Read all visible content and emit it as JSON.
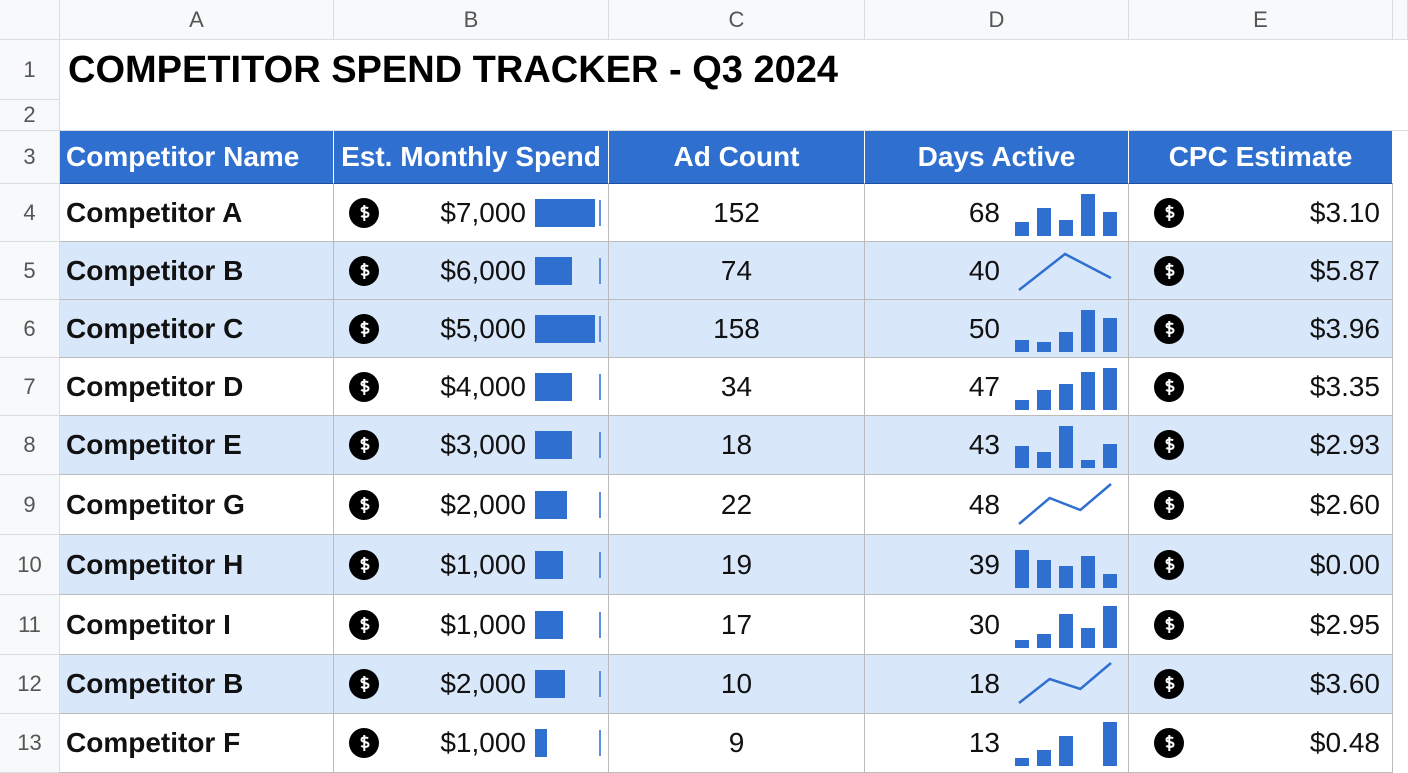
{
  "columns": [
    "A",
    "B",
    "C",
    "D",
    "E"
  ],
  "row_numbers": [
    1,
    2,
    3,
    4,
    5,
    6,
    7,
    8,
    9,
    10,
    11,
    12,
    13
  ],
  "title": "COMPETITOR SPEND TRACKER - Q3 2024",
  "headers": [
    "Competitor Name",
    "Est. Monthly Spend",
    "Ad Count",
    "Days Active",
    "CPC Estimate"
  ],
  "rows": [
    {
      "name": "Competitor A",
      "spend": "$7,000",
      "spend_bar": 100,
      "ad_count": 152,
      "days_active": 68,
      "trend": {
        "kind": "bar",
        "values": [
          14,
          28,
          16,
          42,
          24
        ]
      },
      "cpc": "$3.10",
      "shaded": false
    },
    {
      "name": "Competitor B",
      "spend": "$6,000",
      "spend_bar": 62,
      "ad_count": 74,
      "days_active": 40,
      "trend": {
        "kind": "line",
        "values": [
          4,
          40,
          16
        ]
      },
      "cpc": "$5.87",
      "shaded": true
    },
    {
      "name": "Competitor C",
      "spend": "$5,000",
      "spend_bar": 100,
      "ad_count": 158,
      "days_active": 50,
      "trend": {
        "kind": "bar",
        "values": [
          12,
          10,
          20,
          42,
          34
        ]
      },
      "cpc": "$3.96",
      "shaded": true
    },
    {
      "name": "Competitor D",
      "spend": "$4,000",
      "spend_bar": 62,
      "ad_count": 34,
      "days_active": 47,
      "trend": {
        "kind": "bar",
        "values": [
          10,
          20,
          26,
          38,
          42
        ]
      },
      "cpc": "$3.35",
      "shaded": false
    },
    {
      "name": "Competitor E",
      "spend": "$3,000",
      "spend_bar": 62,
      "ad_count": 18,
      "days_active": 43,
      "trend": {
        "kind": "bar",
        "values": [
          22,
          16,
          42,
          8,
          24
        ]
      },
      "cpc": "$2.93",
      "shaded": true
    },
    {
      "name": "Competitor G",
      "spend": "$2,000",
      "spend_bar": 53,
      "ad_count": 22,
      "days_active": 48,
      "trend": {
        "kind": "line",
        "values": [
          4,
          30,
          18,
          44
        ]
      },
      "cpc": "$2.60",
      "shaded": false
    },
    {
      "name": "Competitor H",
      "spend": "$1,000",
      "spend_bar": 47,
      "ad_count": 19,
      "days_active": 39,
      "trend": {
        "kind": "bar",
        "values": [
          38,
          28,
          22,
          32,
          14
        ]
      },
      "cpc": "$0.00",
      "shaded": true
    },
    {
      "name": "Competitor I",
      "spend": "$1,000",
      "spend_bar": 47,
      "ad_count": 17,
      "days_active": 30,
      "trend": {
        "kind": "bar",
        "values": [
          8,
          14,
          34,
          20,
          42
        ]
      },
      "cpc": "$2.95",
      "shaded": false
    },
    {
      "name": "Competitor B",
      "spend": "$2,000",
      "spend_bar": 50,
      "ad_count": 10,
      "days_active": 18,
      "trend": {
        "kind": "line",
        "values": [
          4,
          28,
          18,
          44
        ]
      },
      "cpc": "$3.60",
      "shaded": true
    },
    {
      "name": "Competitor F",
      "spend": "$1,000",
      "spend_bar": 20,
      "ad_count": 9,
      "days_active": 13,
      "trend": {
        "kind": "bar",
        "values": [
          8,
          16,
          30,
          0,
          44
        ]
      },
      "cpc": "$0.48",
      "shaded": false
    }
  ]
}
